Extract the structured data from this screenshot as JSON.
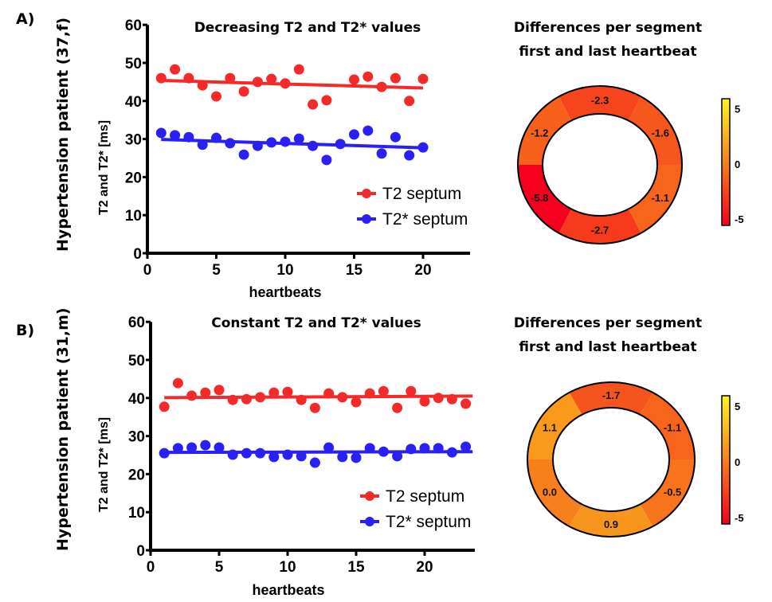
{
  "chart_data": [
    {
      "type": "scatter",
      "panel": "A)",
      "row_label": "Hypertension patient (37,f)",
      "title": "Decreasing T2 and T2* values",
      "xlabel": "heartbeats",
      "ylabel": "T2 and T2* [ms]",
      "xlim": [
        0,
        23.5
      ],
      "ylim": [
        0,
        60
      ],
      "xticks": [
        "0",
        "5",
        "10",
        "15",
        "20"
      ],
      "yticks": [
        "0",
        "10",
        "20",
        "30",
        "40",
        "50",
        "60"
      ],
      "legend": "bottom-right",
      "grid": false,
      "series": [
        {
          "name": "T2 septum",
          "color": "#f42a2a",
          "x": [
            1,
            2,
            3,
            4,
            5,
            6,
            7,
            8,
            9,
            10,
            11,
            12,
            13,
            15,
            16,
            17,
            18,
            19,
            20
          ],
          "values": [
            46.0,
            48.3,
            46.0,
            44.1,
            41.2,
            46.0,
            42.5,
            45.0,
            45.8,
            44.6,
            48.3,
            39.1,
            40.2,
            45.6,
            46.4,
            43.7,
            46.0,
            40.0,
            45.8
          ],
          "fit": {
            "x": [
              1,
              20
            ],
            "y": [
              45.4,
              43.4
            ]
          }
        },
        {
          "name": "T2* septum",
          "color": "#2a1ff4",
          "x": [
            1,
            2,
            3,
            4,
            5,
            6,
            7,
            8,
            9,
            10,
            11,
            12,
            13,
            14,
            15,
            16,
            17,
            18,
            19,
            20
          ],
          "values": [
            31.6,
            31.0,
            30.5,
            28.5,
            30.3,
            28.9,
            25.9,
            28.2,
            29.1,
            29.3,
            30.1,
            28.2,
            24.5,
            28.7,
            31.2,
            32.2,
            26.2,
            30.5,
            25.7,
            27.8
          ],
          "fit": {
            "x": [
              1,
              20
            ],
            "y": [
              29.9,
              27.7
            ]
          }
        }
      ]
    },
    {
      "type": "heatmap",
      "subtype": "segment-ring",
      "panel": "A)",
      "title": "Differences per segment first and last heartbeat",
      "segments": [
        {
          "position": "top",
          "value": -2.3,
          "label": "-2.3"
        },
        {
          "position": "upper-right",
          "value": -1.6,
          "label": "-1.6"
        },
        {
          "position": "lower-right",
          "value": -1.1,
          "label": "-1.1"
        },
        {
          "position": "bottom",
          "value": -2.7,
          "label": "-2.7"
        },
        {
          "position": "lower-left",
          "value": -5.8,
          "label": "-5.8"
        },
        {
          "position": "upper-left",
          "value": -1.2,
          "label": "-1.2"
        }
      ],
      "colorbar": {
        "min": -5,
        "max": 5,
        "ticks": [
          "5",
          "0",
          "-5"
        ],
        "colors": [
          "#f5001e",
          "#f7801c",
          "#fff51c"
        ]
      }
    },
    {
      "type": "scatter",
      "panel": "B)",
      "row_label": "Hypertension patient (31,m)",
      "title": "Constant T2 and T2* values",
      "xlabel": "heartbeats",
      "ylabel": "T2 and T2* [ms]",
      "xlim": [
        0,
        23.6
      ],
      "ylim": [
        0,
        60
      ],
      "xticks": [
        "0",
        "5",
        "10",
        "15",
        "20"
      ],
      "yticks": [
        "0",
        "10",
        "20",
        "30",
        "40",
        "50",
        "60"
      ],
      "legend": "bottom-right",
      "grid": false,
      "series": [
        {
          "name": "T2 septum",
          "color": "#f42a2a",
          "x": [
            1,
            2,
            3,
            4,
            5,
            6,
            7,
            8,
            9,
            10,
            11,
            12,
            13,
            14,
            15,
            16,
            17,
            18,
            19,
            20,
            21,
            22,
            23
          ],
          "values": [
            37.7,
            43.9,
            40.6,
            41.4,
            42.1,
            39.5,
            39.7,
            40.2,
            41.4,
            41.6,
            39.5,
            37.4,
            41.2,
            40.2,
            38.9,
            41.2,
            41.8,
            37.4,
            41.8,
            39.1,
            40.0,
            39.7,
            38.5
          ],
          "fit": {
            "x": [
              1,
              23.5
            ],
            "y": [
              40.1,
              40.5
            ]
          }
        },
        {
          "name": "T2* septum",
          "color": "#2a1ff4",
          "x": [
            1,
            2,
            3,
            4,
            5,
            6,
            7,
            8,
            9,
            10,
            11,
            12,
            13,
            14,
            15,
            16,
            17,
            18,
            19,
            20,
            21,
            22,
            23
          ],
          "values": [
            25.5,
            26.8,
            27.0,
            27.6,
            27.0,
            25.1,
            25.5,
            25.5,
            24.5,
            25.1,
            24.7,
            23.0,
            27.0,
            24.5,
            24.3,
            26.8,
            25.9,
            24.7,
            26.6,
            26.8,
            26.8,
            25.7,
            27.2
          ],
          "fit": {
            "x": [
              1,
              23.5
            ],
            "y": [
              25.7,
              25.9
            ]
          }
        }
      ]
    },
    {
      "type": "heatmap",
      "subtype": "segment-ring",
      "panel": "B)",
      "title": "Differences per segment first and last heartbeat",
      "segments": [
        {
          "position": "top",
          "value": -1.7,
          "label": "-1.7"
        },
        {
          "position": "upper-right",
          "value": -1.1,
          "label": "-1.1"
        },
        {
          "position": "lower-right",
          "value": -0.5,
          "label": "-0.5"
        },
        {
          "position": "bottom",
          "value": 0.9,
          "label": "0.9"
        },
        {
          "position": "lower-left",
          "value": 0.0,
          "label": "0.0"
        },
        {
          "position": "upper-left",
          "value": 1.1,
          "label": "1.1"
        }
      ],
      "colorbar": {
        "min": -5,
        "max": 5,
        "ticks": [
          "5",
          "0",
          "-5"
        ],
        "colors": [
          "#f5001e",
          "#f7801c",
          "#fff51c"
        ]
      }
    }
  ],
  "ring_title_line1": "Differences per segment",
  "ring_title_line2": "first and last heartbeat"
}
